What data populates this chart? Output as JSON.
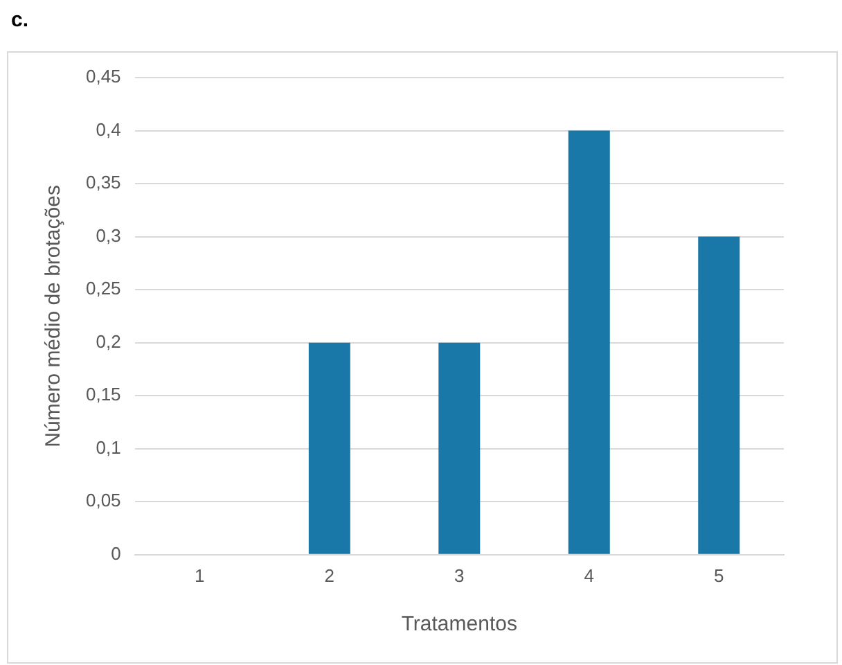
{
  "chart_data": {
    "type": "bar",
    "title": "c.",
    "xlabel": "Tratamentos",
    "ylabel": "Número médio de brotações",
    "categories": [
      "1",
      "2",
      "3",
      "4",
      "5"
    ],
    "values": [
      0,
      0.2,
      0.2,
      0.4,
      0.3
    ],
    "color": "#1a78a8",
    "ylim": [
      0,
      0.45
    ],
    "yticks": [
      0,
      {
        "value": 0.05,
        "label": "0,05"
      },
      {
        "value": 0.1,
        "label": "0,1"
      },
      {
        "value": 0.15,
        "label": "0,15"
      },
      {
        "value": 0.2,
        "label": "0,2"
      },
      {
        "value": 0.25,
        "label": "0,25"
      },
      {
        "value": 0.3,
        "label": "0,3"
      },
      {
        "value": 0.35,
        "label": "0,35"
      },
      {
        "value": 0.4,
        "label": "0,4"
      },
      {
        "value": 0.45,
        "label": "0,45"
      }
    ],
    "grid": "y",
    "legend": false
  }
}
